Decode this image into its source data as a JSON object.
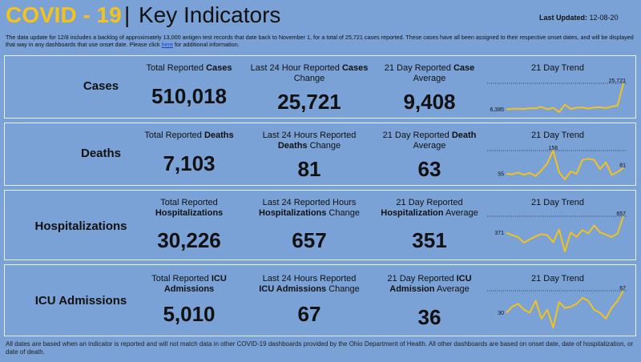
{
  "header": {
    "title_covid": "COVID - 19",
    "title_sep": "|",
    "title_key": "Key Indicators",
    "updated_label": "Last Updated:",
    "updated_date": "12-08-20"
  },
  "notice": {
    "text_before": "The data update for 12/8 includes a backlog of approximately 13,000 antigen test records that date back to November 1, for a total of 25,721 cases reported. These cases have all been assigned to their respective onset dates, and will be displayed that way in any dashboards that use onset date. Please click ",
    "link": "here",
    "text_after": " for additional information."
  },
  "colors": {
    "background": "#7aa2d6",
    "title": "#f4c21c",
    "trend_line": "#f4c21c",
    "border": "#eaf1fb"
  },
  "rows": [
    {
      "label": "Cases",
      "c1": {
        "pre": "Total Reported ",
        "bold": "Cases",
        "post": "",
        "value": "510,018"
      },
      "c2": {
        "pre": "Last 24 Hour Reported ",
        "bold": "Cases",
        "post": " Change",
        "value": "25,721"
      },
      "c3": {
        "pre": "21 Day Reported ",
        "bold": "Case",
        "post": " Average",
        "value": "9,408"
      },
      "trend": {
        "title": "21 Day Trend",
        "first_label": "6,385",
        "last_label": "25,721",
        "points": [
          6385,
          6700,
          6900,
          6600,
          7300,
          7100,
          8200,
          6400,
          7600,
          4300,
          9900,
          6700,
          7600,
          7800,
          7000,
          7700,
          7900,
          7300,
          8400,
          9100,
          25721
        ]
      }
    },
    {
      "label": "Deaths",
      "c1": {
        "pre": "Total Reported ",
        "bold": "Deaths",
        "post": "",
        "value": "7,103"
      },
      "c2": {
        "pre": "Last 24 Hours Reported ",
        "bold": "Deaths",
        "post": " Change",
        "value": "81"
      },
      "c3": {
        "pre": "21 Day Reported ",
        "bold": "Death",
        "post": " Average",
        "value": "63"
      },
      "trend": {
        "title": "21 Day Trend",
        "first_label": "55",
        "last_label": "81",
        "peak_label": "156",
        "points": [
          55,
          52,
          60,
          50,
          58,
          45,
          70,
          100,
          156,
          62,
          30,
          65,
          55,
          115,
          120,
          115,
          75,
          105,
          50,
          62,
          81
        ]
      }
    },
    {
      "label": "Hospitalizations",
      "c1": {
        "pre": "Total Reported ",
        "bold": "Hospitalizations",
        "post": "",
        "value": "30,226"
      },
      "c2": {
        "pre": "Last 24 Reported Hours ",
        "bold": "Hospitalizations",
        "post": " Change",
        "value": "657"
      },
      "c3": {
        "pre": "21 Day Reported ",
        "bold": "Hospitalization",
        "post": " Average",
        "value": "351"
      },
      "trend": {
        "title": "21 Day Trend",
        "first_label": "371",
        "last_label": "657",
        "points": [
          371,
          330,
          300,
          200,
          260,
          310,
          350,
          330,
          210,
          430,
          50,
          380,
          300,
          420,
          360,
          500,
          380,
          340,
          300,
          360,
          657
        ]
      }
    },
    {
      "label": "ICU Admissions",
      "c1": {
        "pre": "Total Reported ",
        "bold": "ICU Admissions",
        "post": "",
        "value": "5,010"
      },
      "c2": {
        "pre": "Last 24 Hours Reported ",
        "bold": "ICU Admissions",
        "post": " Change",
        "value": "67"
      },
      "c3": {
        "pre": "21 Day Reported ",
        "bold": "ICU Admission",
        "post": " Average",
        "value": "36"
      },
      "trend": {
        "title": "21 Day Trend",
        "first_label": "30",
        "last_label": "67",
        "points": [
          30,
          40,
          45,
          35,
          30,
          50,
          20,
          35,
          5,
          48,
          38,
          40,
          45,
          55,
          50,
          35,
          30,
          20,
          38,
          50,
          67
        ]
      }
    }
  ],
  "footer": "All dates are based when an indicator is reported and will not match data in other COVID-19 dashboards provided by the Ohio Department of Health. All other dashboards are based on onset date, date of hospitalization, or date of death."
}
